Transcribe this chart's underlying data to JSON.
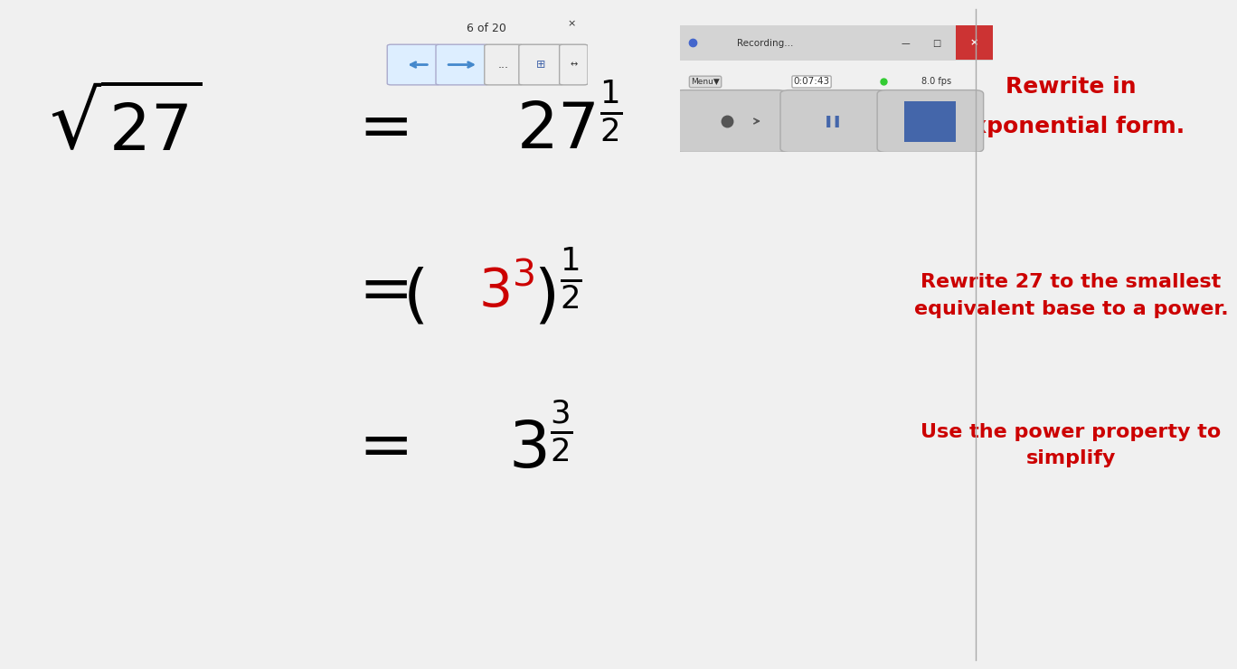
{
  "bg_color": "#f0f0f0",
  "whiteboard_color": "#ffffff",
  "text_color_black": "#000000",
  "text_color_red": "#cc0000",
  "line1_math": "$\\sqrt{27}$",
  "line1_eq": "$= 27^{1/2}$",
  "line2_eq": "$= (3^3)^{1/2}$",
  "line3_eq": "$= 3^{3/2}$",
  "right_text1": "Rewrite in exponential form.",
  "right_text2": "Rewrite 27 to the smallest\nequivalent base to a power.",
  "right_text3": "Use the power property to\nsimplify",
  "nav_text": "6 of 20",
  "recording_text": "Recording...",
  "time_text": "0:07:43",
  "fps_text": "8.0 fps"
}
